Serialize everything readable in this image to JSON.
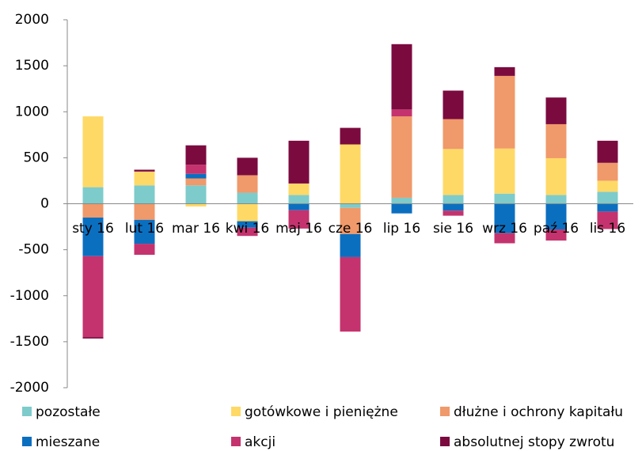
{
  "chart_data": {
    "type": "stacked-bar",
    "categories": [
      "sty 16",
      "lut 16",
      "mar 16",
      "kwi 16",
      "maj 16",
      "cze 16",
      "lip 16",
      "sie 16",
      "wrz 16",
      "paź 16",
      "lis 16"
    ],
    "series": [
      {
        "name": "pozostałe",
        "color": "#7ecbcb",
        "values": [
          180,
          200,
          200,
          120,
          95,
          -45,
          65,
          95,
          110,
          95,
          130
        ]
      },
      {
        "name": "gotówkowe i pieniężne",
        "color": "#ffd966",
        "values": [
          770,
          150,
          -30,
          -190,
          125,
          645,
          0,
          500,
          490,
          400,
          120
        ]
      },
      {
        "name": "dłużne i ochrony kapitału",
        "color": "#f0996a",
        "values": [
          -150,
          -175,
          75,
          190,
          0,
          -285,
          885,
          325,
          790,
          370,
          195
        ]
      },
      {
        "name": "mieszane",
        "color": "#0b6fc0",
        "values": [
          -420,
          -260,
          50,
          -70,
          -70,
          -250,
          -105,
          -75,
          -320,
          -280,
          -85
        ]
      },
      {
        "name": "akcji",
        "color": "#c4336e",
        "values": [
          -880,
          -120,
          100,
          -90,
          -200,
          -810,
          75,
          -55,
          -110,
          -120,
          -190
        ]
      },
      {
        "name": "absolutnej stopy zwrotu",
        "color": "#7b0a3f",
        "values": [
          -15,
          20,
          210,
          190,
          465,
          180,
          710,
          310,
          95,
          290,
          240
        ]
      }
    ],
    "ylim": [
      -2000,
      2000
    ],
    "yticks": [
      -2000,
      -1500,
      -1000,
      -500,
      0,
      500,
      1000,
      1500,
      2000
    ]
  }
}
